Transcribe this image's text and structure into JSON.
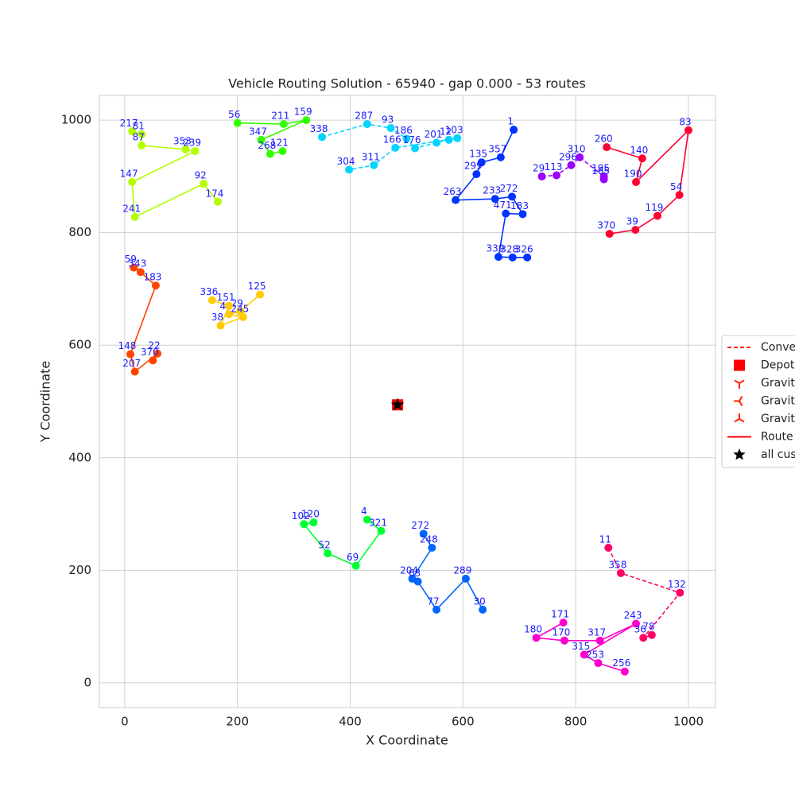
{
  "chart_data": {
    "type": "scatter",
    "title": "Vehicle Routing Solution - 65940 - gap 0.000 - 53 routes",
    "xlabel": "X Coordinate",
    "ylabel": "Y Coordinate",
    "xlim": [
      -45,
      1048
    ],
    "ylim": [
      -44,
      1044
    ],
    "xticks": [
      0,
      200,
      400,
      600,
      800,
      1000
    ],
    "yticks": [
      0,
      200,
      400,
      600,
      800,
      1000
    ],
    "grid": true,
    "depot": {
      "x": 484,
      "y": 494,
      "color": "#ff0000"
    },
    "customers_marker": {
      "x": 484,
      "y": 494,
      "color": "#000000"
    },
    "routes": [
      {
        "color": "#ff0033",
        "dashed": false,
        "nodes": [
          "260",
          "140",
          "190",
          "83",
          "54",
          "119",
          "39",
          "370"
        ],
        "x": [
          855,
          918,
          907,
          1000,
          984,
          945,
          906,
          860
        ],
        "y": [
          952,
          932,
          890,
          982,
          867,
          830,
          805,
          798
        ]
      },
      {
        "color": "#0033ff",
        "dashed": false,
        "nodes": [
          "1",
          "357",
          "135",
          "299",
          "263",
          "233",
          "272",
          "183",
          "471",
          "339",
          "328",
          "326"
        ],
        "x": [
          690,
          667,
          633,
          624,
          587,
          657,
          687,
          706,
          676,
          663,
          688,
          714
        ],
        "y": [
          983,
          934,
          925,
          904,
          858,
          860,
          864,
          833,
          834,
          757,
          756,
          756
        ]
      },
      {
        "color": "#00d5ff",
        "dashed": true,
        "nodes": [
          "338",
          "287",
          "93",
          "186",
          "176",
          "201",
          "12",
          "103",
          "166",
          "311",
          "304"
        ],
        "x": [
          350,
          430,
          472,
          500,
          515,
          553,
          575,
          590,
          480,
          442,
          398
        ],
        "y": [
          970,
          993,
          986,
          967,
          950,
          960,
          965,
          968,
          951,
          920,
          912
        ]
      },
      {
        "color": "#b3ff00",
        "dashed": false,
        "nodes": [
          "217",
          "81",
          "87",
          "353",
          "239",
          "147",
          "241",
          "92",
          "174"
        ],
        "x": [
          13,
          30,
          30,
          108,
          125,
          13,
          18,
          140,
          165
        ],
        "y": [
          980,
          975,
          955,
          948,
          945,
          890,
          828,
          887,
          855
        ]
      },
      {
        "color": "#ff4400",
        "dashed": false,
        "nodes": [
          "59",
          "343",
          "183",
          "148",
          "207",
          "22",
          "370"
        ],
        "x": [
          16,
          28,
          55,
          10,
          18,
          58,
          50
        ],
        "y": [
          738,
          730,
          706,
          584,
          553,
          585,
          573
        ]
      },
      {
        "color": "#9900ff",
        "dashed": true,
        "nodes": [
          "29",
          "113",
          "296",
          "310",
          "195",
          "165"
        ],
        "x": [
          740,
          766,
          792,
          807,
          850,
          850
        ],
        "y": [
          900,
          902,
          920,
          934,
          900,
          895
        ]
      },
      {
        "color": "#ff00cc",
        "dashed": false,
        "nodes": [
          "171",
          "180",
          "170",
          "317",
          "243",
          "315",
          "253",
          "256"
        ],
        "x": [
          778,
          730,
          780,
          843,
          907,
          815,
          840,
          887
        ],
        "y": [
          107,
          80,
          75,
          75,
          105,
          50,
          35,
          20
        ]
      },
      {
        "color": "#33ff00",
        "dashed": false,
        "nodes": [
          "56",
          "211",
          "159",
          "347",
          "268",
          "121"
        ],
        "x": [
          200,
          282,
          322,
          242,
          258,
          280
        ],
        "y": [
          995,
          993,
          1000,
          965,
          940,
          945
        ]
      },
      {
        "color": "#00ff33",
        "dashed": false,
        "nodes": [
          "4",
          "321",
          "69",
          "52",
          "102",
          "120"
        ],
        "x": [
          430,
          455,
          410,
          360,
          318,
          335
        ],
        "y": [
          290,
          270,
          208,
          230,
          282,
          285
        ]
      },
      {
        "color": "#ffcc00",
        "dashed": false,
        "nodes": [
          "125",
          "29",
          "42",
          "245",
          "38",
          "151",
          "336"
        ],
        "x": [
          240,
          205,
          185,
          210,
          170,
          185,
          155
        ],
        "y": [
          690,
          660,
          655,
          650,
          635,
          670,
          680
        ]
      },
      {
        "color": "#0066ff",
        "dashed": false,
        "nodes": [
          "272",
          "248",
          "204",
          "63",
          "77",
          "289",
          "30"
        ],
        "x": [
          530,
          545,
          510,
          520,
          553,
          605,
          635
        ],
        "y": [
          265,
          240,
          185,
          180,
          130,
          185,
          130
        ]
      },
      {
        "color": "#ff0066",
        "dashed": true,
        "nodes": [
          "11",
          "358",
          "132",
          "36",
          "78"
        ],
        "x": [
          858,
          880,
          985,
          920,
          935
        ],
        "y": [
          240,
          195,
          160,
          80,
          85
        ]
      }
    ],
    "legend": [
      {
        "label": "Conve",
        "marker": "dashed"
      },
      {
        "label": "Depot",
        "marker": "square"
      },
      {
        "label": "Gravit",
        "marker": "tri-down"
      },
      {
        "label": "Gravit",
        "marker": "tri-left"
      },
      {
        "label": "Gravit",
        "marker": "tri-up"
      },
      {
        "label": "Route",
        "marker": "line"
      },
      {
        "label": "all cus",
        "marker": "star"
      }
    ]
  }
}
